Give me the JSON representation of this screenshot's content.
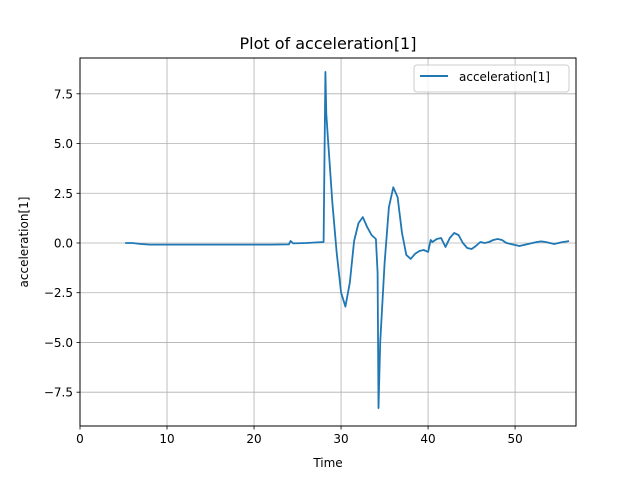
{
  "chart_data": {
    "type": "line",
    "title": "Plot of acceleration[1]",
    "xlabel": "Time",
    "ylabel": "acceleration[1]",
    "xlim": [
      0,
      57
    ],
    "ylim": [
      -9.2,
      9.3
    ],
    "xticks": [
      0,
      10,
      20,
      30,
      40,
      50
    ],
    "xtick_labels": [
      "0",
      "10",
      "20",
      "30",
      "40",
      "50"
    ],
    "yticks": [
      -7.5,
      -5.0,
      -2.5,
      0.0,
      2.5,
      5.0,
      7.5
    ],
    "ytick_labels": [
      "−7.5",
      "−5.0",
      "−2.5",
      "0.0",
      "2.5",
      "5.0",
      "7.5"
    ],
    "grid": true,
    "legend_position": "top-right",
    "color": "#1f77b4",
    "series": [
      {
        "name": "acceleration[1]",
        "x": [
          5.2,
          6.0,
          7.0,
          8.0,
          10.0,
          15.0,
          20.0,
          22.0,
          24.0,
          24.2,
          24.5,
          26.0,
          28.0,
          28.2,
          28.3,
          28.5,
          29.0,
          29.5,
          30.0,
          30.5,
          31.0,
          31.5,
          32.0,
          32.5,
          33.0,
          33.5,
          34.0,
          34.2,
          34.3,
          34.5,
          35.0,
          35.5,
          36.0,
          36.5,
          37.0,
          37.5,
          38.0,
          38.5,
          39.0,
          39.5,
          40.0,
          40.3,
          40.5,
          41.0,
          41.5,
          42.0,
          42.5,
          43.0,
          43.5,
          44.0,
          44.5,
          45.0,
          45.5,
          46.0,
          46.5,
          47.0,
          47.5,
          48.0,
          48.5,
          49.0,
          49.5,
          50.0,
          50.5,
          51.0,
          51.5,
          52.0,
          52.5,
          53.0,
          53.5,
          54.0,
          54.5,
          55.0,
          55.5,
          56.0,
          56.2
        ],
        "y": [
          0.0,
          0.0,
          -0.05,
          -0.08,
          -0.08,
          -0.08,
          -0.08,
          -0.08,
          -0.07,
          0.1,
          -0.02,
          0.0,
          0.05,
          8.6,
          6.5,
          5.2,
          2.0,
          -0.5,
          -2.5,
          -3.2,
          -2.0,
          0.1,
          1.0,
          1.3,
          0.8,
          0.4,
          0.2,
          -1.5,
          -8.3,
          -5.0,
          -1.0,
          1.8,
          2.8,
          2.3,
          0.5,
          -0.6,
          -0.8,
          -0.55,
          -0.4,
          -0.35,
          -0.45,
          0.15,
          0.05,
          0.2,
          0.25,
          -0.2,
          0.25,
          0.5,
          0.4,
          0.0,
          -0.25,
          -0.3,
          -0.15,
          0.05,
          0.0,
          0.05,
          0.15,
          0.2,
          0.15,
          0.0,
          -0.05,
          -0.1,
          -0.15,
          -0.1,
          -0.05,
          0.0,
          0.05,
          0.08,
          0.05,
          0.0,
          -0.05,
          0.0,
          0.05,
          0.08,
          0.1
        ]
      }
    ]
  }
}
